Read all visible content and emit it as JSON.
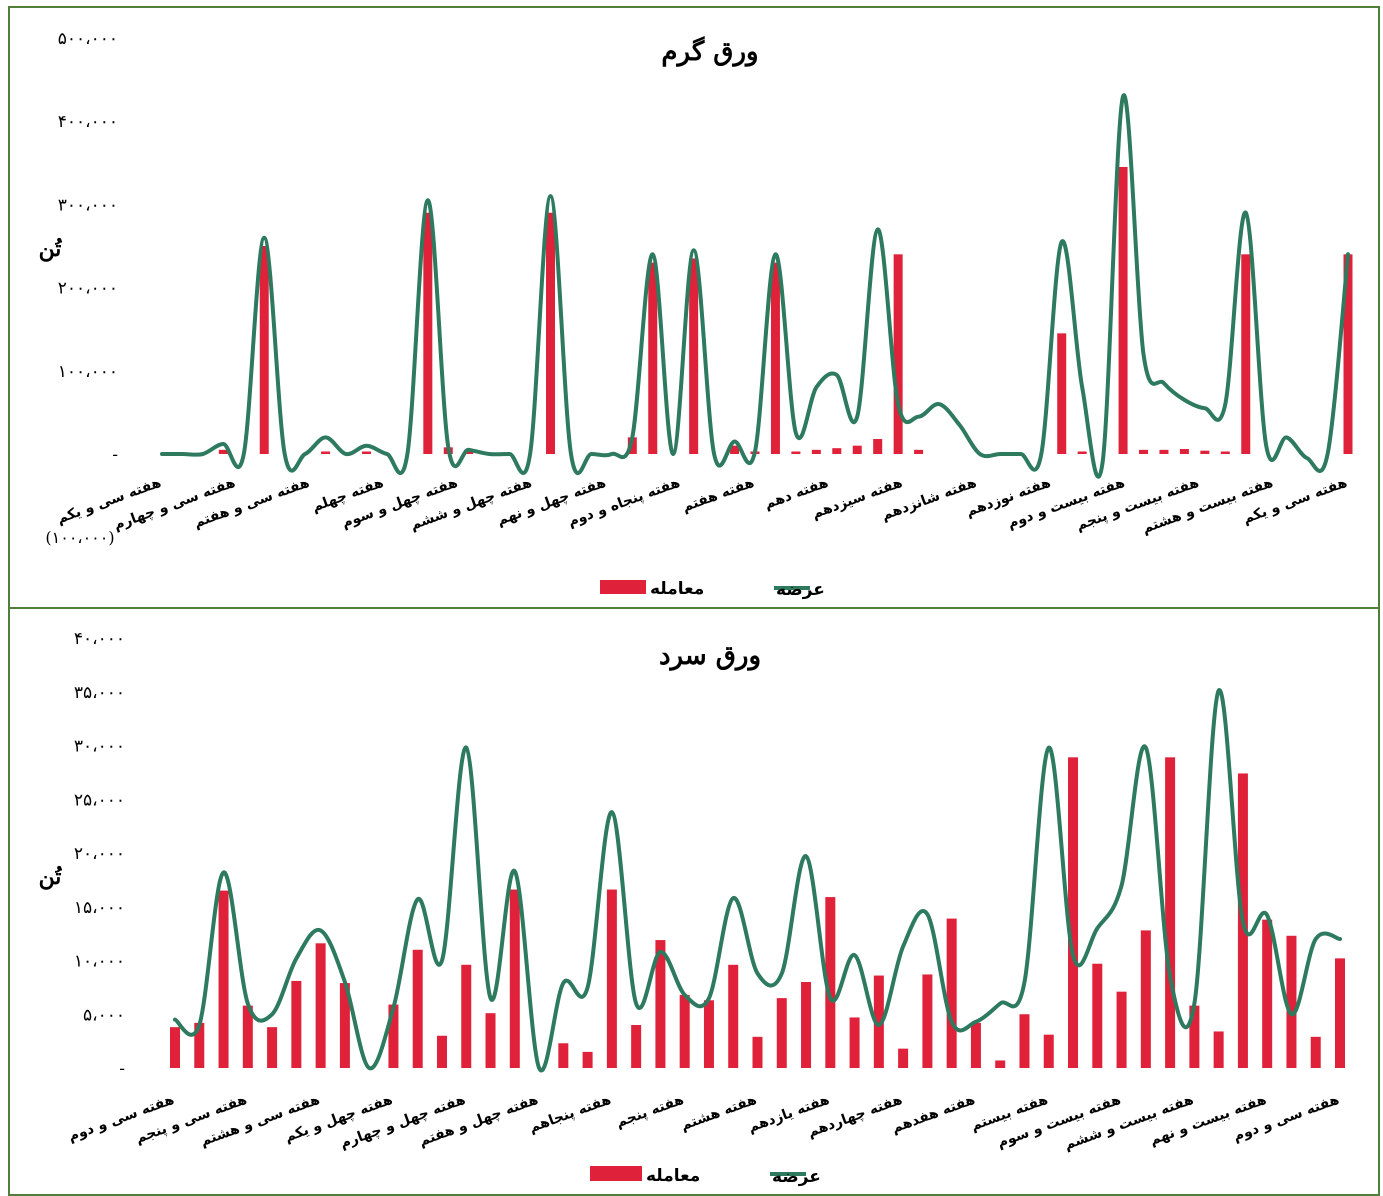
{
  "colors": {
    "bar": "#e0213a",
    "line": "#2d7a5f",
    "frame": "#4f7f3a"
  },
  "legend": {
    "bar": "معامله",
    "line": "عرضه"
  },
  "chart_data": [
    {
      "type": "bar+line",
      "title": "ورق گرم",
      "ylabel": "تُن",
      "unit_note": "(۱۰۰،۰۰۰)",
      "ylim": [
        0,
        500000
      ],
      "yticks": [
        "-",
        "۱۰۰،۰۰۰",
        "۲۰۰،۰۰۰",
        "۳۰۰،۰۰۰",
        "۴۰۰،۰۰۰",
        "۵۰۰،۰۰۰"
      ],
      "xtick_labels": [
        "هفته سی و یکم",
        "هفته سی و چهارم",
        "هفته سی و هفتم",
        "هفته چهلم",
        "هفته چهل و سوم",
        "هفته چهل و ششم",
        "هفته چهل و نهم",
        "هفته پنجاه و دوم",
        "هفته هفتم",
        "هفته دهم",
        "هفته سیزدهم",
        "هفته شانزدهم",
        "هفته نوزدهم",
        "هفته بیست و دوم",
        "هفته بیست و پنجم",
        "هفته بیست و هشتم",
        "هفته سی و یکم"
      ],
      "series": [
        {
          "name": "معامله",
          "kind": "bar",
          "values": [
            0,
            0,
            0,
            5000,
            0,
            250000,
            0,
            0,
            3000,
            0,
            3000,
            0,
            0,
            290000,
            8000,
            5000,
            0,
            0,
            0,
            290000,
            0,
            0,
            0,
            20000,
            230000,
            0,
            235000,
            0,
            10000,
            3000,
            230000,
            3000,
            5000,
            7000,
            10000,
            18000,
            240000,
            5000,
            0,
            0,
            0,
            0,
            0,
            0,
            145000,
            3000,
            0,
            345000,
            5000,
            5000,
            6000,
            4000,
            3000,
            240000,
            0,
            0,
            0,
            0,
            240000
          ]
        },
        {
          "name": "عرضه",
          "kind": "line",
          "values": [
            0,
            0,
            0,
            12000,
            0,
            260000,
            0,
            0,
            20000,
            0,
            10000,
            0,
            0,
            305000,
            8000,
            5000,
            0,
            0,
            0,
            310000,
            0,
            0,
            0,
            20000,
            240000,
            0,
            245000,
            0,
            15000,
            3000,
            240000,
            25000,
            80000,
            95000,
            45000,
            270000,
            60000,
            45000,
            60000,
            35000,
            0,
            0,
            0,
            0,
            255000,
            80000,
            -10000,
            430000,
            120000,
            85000,
            65000,
            55000,
            60000,
            290000,
            10000,
            20000,
            -5000,
            0,
            240000
          ]
        }
      ]
    },
    {
      "type": "bar+line",
      "title": "ورق سرد",
      "ylabel": "تُن",
      "ylim": [
        0,
        40000
      ],
      "yticks": [
        "-",
        "۵،۰۰۰",
        "۱۰،۰۰۰",
        "۱۵،۰۰۰",
        "۲۰،۰۰۰",
        "۲۵،۰۰۰",
        "۳۰،۰۰۰",
        "۳۵،۰۰۰",
        "۴۰،۰۰۰"
      ],
      "xtick_labels": [
        "هفته سی و دوم",
        "هفته سی و پنجم",
        "هفته سی و هشتم",
        "هفته چهل و یکم",
        "هفته چهل و چهارم",
        "هفته چهل و هفتم",
        "هفته پنجاهم",
        "هفته پنجم",
        "هفته هشتم",
        "هفته یازدهم",
        "هفته چهاردهم",
        "هفته هفدهم",
        "هفته بیستم",
        "هفته بیست و سوم",
        "هفته بیست و ششم",
        "هفته بیست و نهم",
        "هفته سی و دوم"
      ],
      "series": [
        {
          "name": "معامله",
          "kind": "bar",
          "values": [
            3800,
            4200,
            16500,
            5800,
            3800,
            8100,
            11600,
            7900,
            0,
            5900,
            11000,
            3000,
            9600,
            5100,
            16600,
            0,
            2300,
            1500,
            16600,
            4000,
            11900,
            6800,
            6300,
            9600,
            2900,
            6500,
            8000,
            15900,
            4700,
            8600,
            1800,
            8700,
            13900,
            4200,
            700,
            5000,
            3100,
            28900,
            9700,
            7100,
            12800,
            28900,
            5800,
            3400,
            27400,
            13800,
            12300,
            2900,
            10200
          ]
        },
        {
          "name": "عرضه",
          "kind": "line",
          "values": [
            4500,
            4000,
            18200,
            6000,
            5000,
            10200,
            12800,
            8000,
            0,
            5600,
            15700,
            10000,
            29800,
            6500,
            18300,
            0,
            7900,
            7500,
            23800,
            6000,
            10800,
            6800,
            6500,
            15800,
            8800,
            8800,
            19700,
            6500,
            10500,
            4000,
            11300,
            14300,
            4300,
            4300,
            6000,
            8000,
            29800,
            10500,
            13000,
            17000,
            29800,
            8500,
            6000,
            35100,
            13600,
            14200,
            5000,
            12000,
            12000
          ]
        }
      ]
    }
  ]
}
